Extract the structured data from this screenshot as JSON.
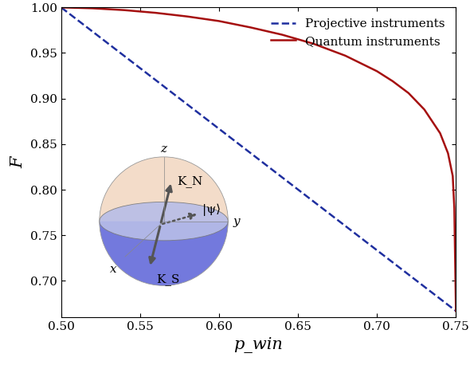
{
  "chart_data": {
    "type": "line",
    "x_label": "p_win",
    "y_label": "F",
    "series": [
      {
        "name": "Projective instruments",
        "color": "#1f2f9f",
        "line_style": "dashed",
        "x": [
          0.5,
          0.75
        ],
        "values": [
          1.0,
          0.667
        ]
      },
      {
        "name": "Quantum instruments",
        "color": "#a50f0f",
        "line_style": "solid",
        "x": [
          0.5,
          0.52,
          0.54,
          0.56,
          0.58,
          0.6,
          0.62,
          0.64,
          0.66,
          0.68,
          0.7,
          0.71,
          0.72,
          0.73,
          0.74,
          0.745,
          0.748,
          0.749,
          0.75
        ],
        "values": [
          1.0,
          0.999,
          0.997,
          0.994,
          0.99,
          0.985,
          0.978,
          0.97,
          0.96,
          0.947,
          0.93,
          0.919,
          0.906,
          0.888,
          0.862,
          0.84,
          0.815,
          0.78,
          0.667
        ]
      }
    ],
    "xlim": [
      0.5,
      0.75
    ],
    "ylim": [
      0.66,
      1.0
    ],
    "xticks": [
      {
        "value": 0.5,
        "label": "0.50"
      },
      {
        "value": 0.55,
        "label": "0.55"
      },
      {
        "value": 0.6,
        "label": "0.60"
      },
      {
        "value": 0.65,
        "label": "0.65"
      },
      {
        "value": 0.7,
        "label": "0.70"
      },
      {
        "value": 0.75,
        "label": "0.75"
      }
    ],
    "yticks": [
      {
        "value": 0.7,
        "label": "0.70"
      },
      {
        "value": 0.75,
        "label": "0.75"
      },
      {
        "value": 0.8,
        "label": "0.80"
      },
      {
        "value": 0.85,
        "label": "0.85"
      },
      {
        "value": 0.9,
        "label": "0.90"
      },
      {
        "value": 0.95,
        "label": "0.95"
      },
      {
        "value": 1.0,
        "label": "1.00"
      }
    ],
    "grid": false,
    "legend": "upper right",
    "annotations": [
      "z",
      "y",
      "x",
      "K_N",
      "K_S",
      "|ψ⟩"
    ]
  }
}
